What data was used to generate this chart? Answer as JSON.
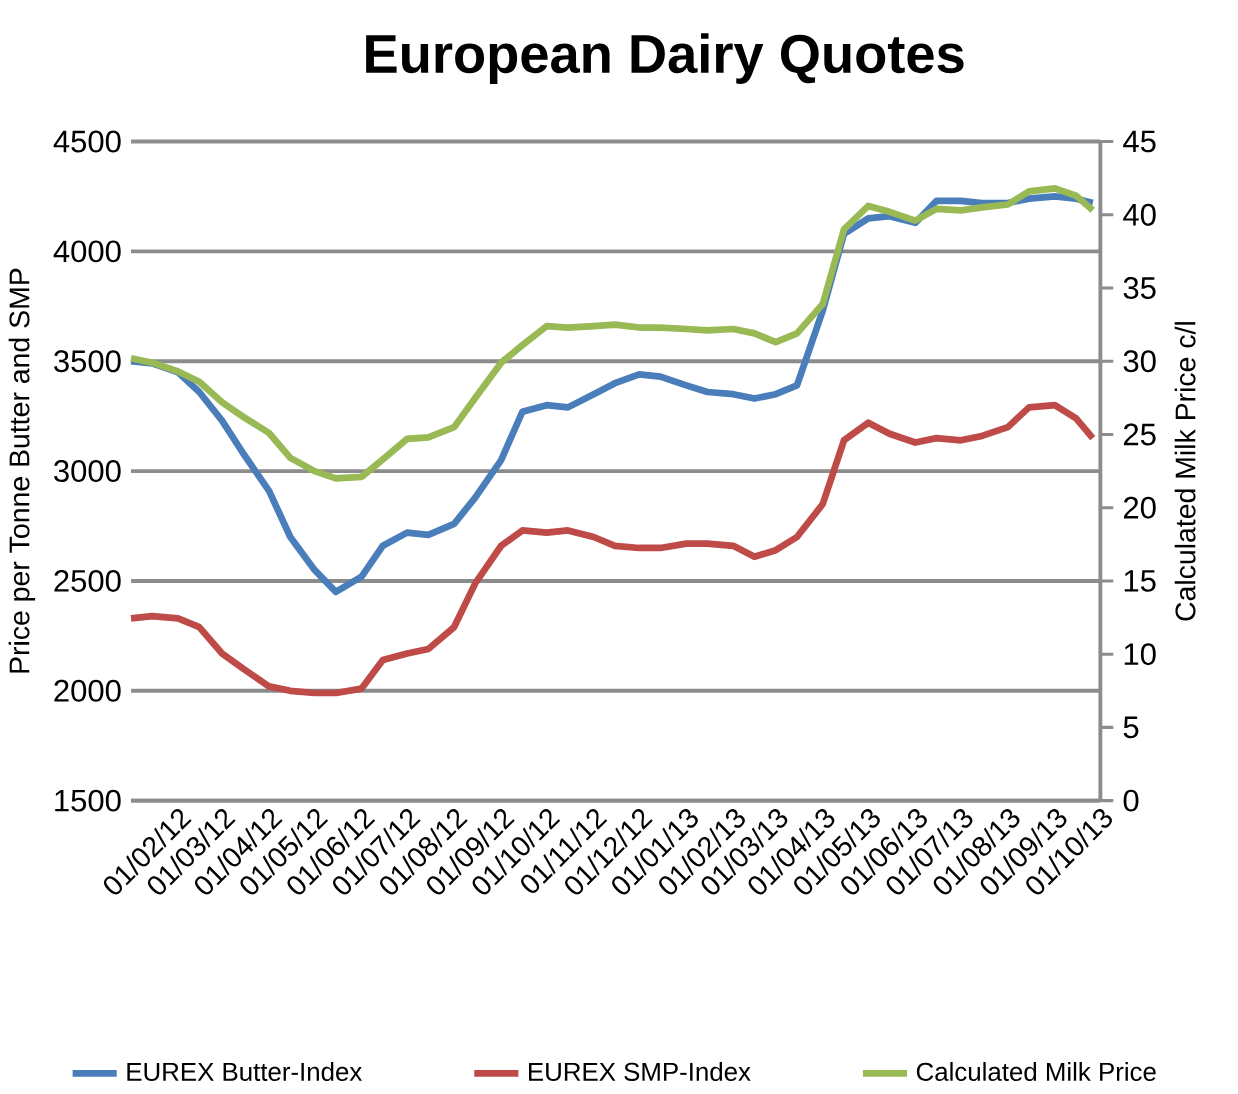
{
  "chart_data": {
    "type": "line",
    "title": "European Dairy Quotes",
    "ylabel": "Price per Tonne Butter and SMP",
    "y2label": "Calculated Milk Price c/l",
    "x": [
      "2012-01-01",
      "2012-01-15",
      "2012-02-01",
      "2012-02-15",
      "2012-03-01",
      "2012-03-15",
      "2012-04-01",
      "2012-04-15",
      "2012-05-01",
      "2012-05-15",
      "2012-06-01",
      "2012-06-15",
      "2012-07-01",
      "2012-07-15",
      "2012-08-01",
      "2012-08-15",
      "2012-09-01",
      "2012-09-15",
      "2012-10-01",
      "2012-10-15",
      "2012-11-01",
      "2012-11-15",
      "2012-12-01",
      "2012-12-15",
      "2013-01-01",
      "2013-01-15",
      "2013-02-01",
      "2013-02-15",
      "2013-03-01",
      "2013-03-15",
      "2013-04-01",
      "2013-04-15",
      "2013-05-01",
      "2013-05-15",
      "2013-06-01",
      "2013-06-15",
      "2013-07-01",
      "2013-07-15",
      "2013-08-01",
      "2013-08-15",
      "2013-09-01",
      "2013-09-15",
      "2013-09-26"
    ],
    "series": [
      {
        "name": "EUREX Butter-Index",
        "color": "#4a7ebb",
        "values": [
          3500,
          3490,
          3450,
          3360,
          3230,
          3080,
          2910,
          2700,
          2550,
          2450,
          2520,
          2660,
          2720,
          2710,
          2760,
          2880,
          3050,
          3270,
          3300,
          3290,
          3350,
          3400,
          3440,
          3430,
          3390,
          3360,
          3350,
          3330,
          3350,
          3390,
          3730,
          4080,
          4150,
          4160,
          4130,
          4230,
          4230,
          4220,
          4220,
          4240,
          4250,
          4240,
          4220
        ]
      },
      {
        "name": "EUREX SMP-Index",
        "color": "#be4b48",
        "values": [
          2330,
          2340,
          2330,
          2290,
          2170,
          2100,
          2020,
          2000,
          1990,
          1990,
          2010,
          2140,
          2170,
          2190,
          2290,
          2490,
          2660,
          2730,
          2720,
          2730,
          2700,
          2660,
          2650,
          2650,
          2670,
          2670,
          2660,
          2610,
          2640,
          2700,
          2850,
          3140,
          3220,
          3170,
          3130,
          3150,
          3140,
          3160,
          3200,
          3290,
          3300,
          3240,
          3150
        ]
      },
      {
        "name": "Calculated Milk Price",
        "color": "#98b954",
        "axis": "y2",
        "values": [
          30.2,
          29.9,
          29.3,
          28.6,
          27.2,
          26.2,
          25.1,
          23.4,
          22.5,
          22.0,
          22.1,
          23.3,
          24.7,
          24.8,
          25.5,
          27.5,
          29.9,
          31.1,
          32.4,
          32.3,
          32.4,
          32.5,
          32.3,
          32.3,
          32.2,
          32.1,
          32.2,
          31.9,
          31.3,
          31.9,
          33.9,
          39.0,
          40.6,
          40.2,
          39.6,
          40.4,
          40.3,
          40.5,
          40.7,
          41.6,
          41.8,
          41.3,
          40.3
        ]
      }
    ],
    "xlim": [
      "2012-01-01",
      "2013-10-01"
    ],
    "xticks": [
      {
        "value": "2012-02-01",
        "label": "01/02/12"
      },
      {
        "value": "2012-03-01",
        "label": "01/03/12"
      },
      {
        "value": "2012-04-01",
        "label": "01/04/12"
      },
      {
        "value": "2012-05-01",
        "label": "01/05/12"
      },
      {
        "value": "2012-06-01",
        "label": "01/06/12"
      },
      {
        "value": "2012-07-01",
        "label": "01/07/12"
      },
      {
        "value": "2012-08-01",
        "label": "01/08/12"
      },
      {
        "value": "2012-09-01",
        "label": "01/09/12"
      },
      {
        "value": "2012-10-01",
        "label": "01/10/12"
      },
      {
        "value": "2012-11-01",
        "label": "01/11/12"
      },
      {
        "value": "2012-12-01",
        "label": "01/12/12"
      },
      {
        "value": "2013-01-01",
        "label": "01/01/13"
      },
      {
        "value": "2013-02-01",
        "label": "01/02/13"
      },
      {
        "value": "2013-03-01",
        "label": "01/03/13"
      },
      {
        "value": "2013-04-01",
        "label": "01/04/13"
      },
      {
        "value": "2013-05-01",
        "label": "01/05/13"
      },
      {
        "value": "2013-06-01",
        "label": "01/06/13"
      },
      {
        "value": "2013-07-01",
        "label": "01/07/13"
      },
      {
        "value": "2013-08-01",
        "label": "01/08/13"
      },
      {
        "value": "2013-09-01",
        "label": "01/09/13"
      },
      {
        "value": "2013-10-01",
        "label": "01/10/13"
      }
    ],
    "ylim": [
      1500,
      4500
    ],
    "yticks": [
      1500,
      2000,
      2500,
      3000,
      3500,
      4000,
      4500
    ],
    "y2lim": [
      0,
      45
    ],
    "y2ticks": [
      0,
      5,
      10,
      15,
      20,
      25,
      30,
      35,
      40,
      45
    ],
    "grid": "y",
    "legend": "bottom",
    "marker": "none",
    "line_style": "solid"
  }
}
